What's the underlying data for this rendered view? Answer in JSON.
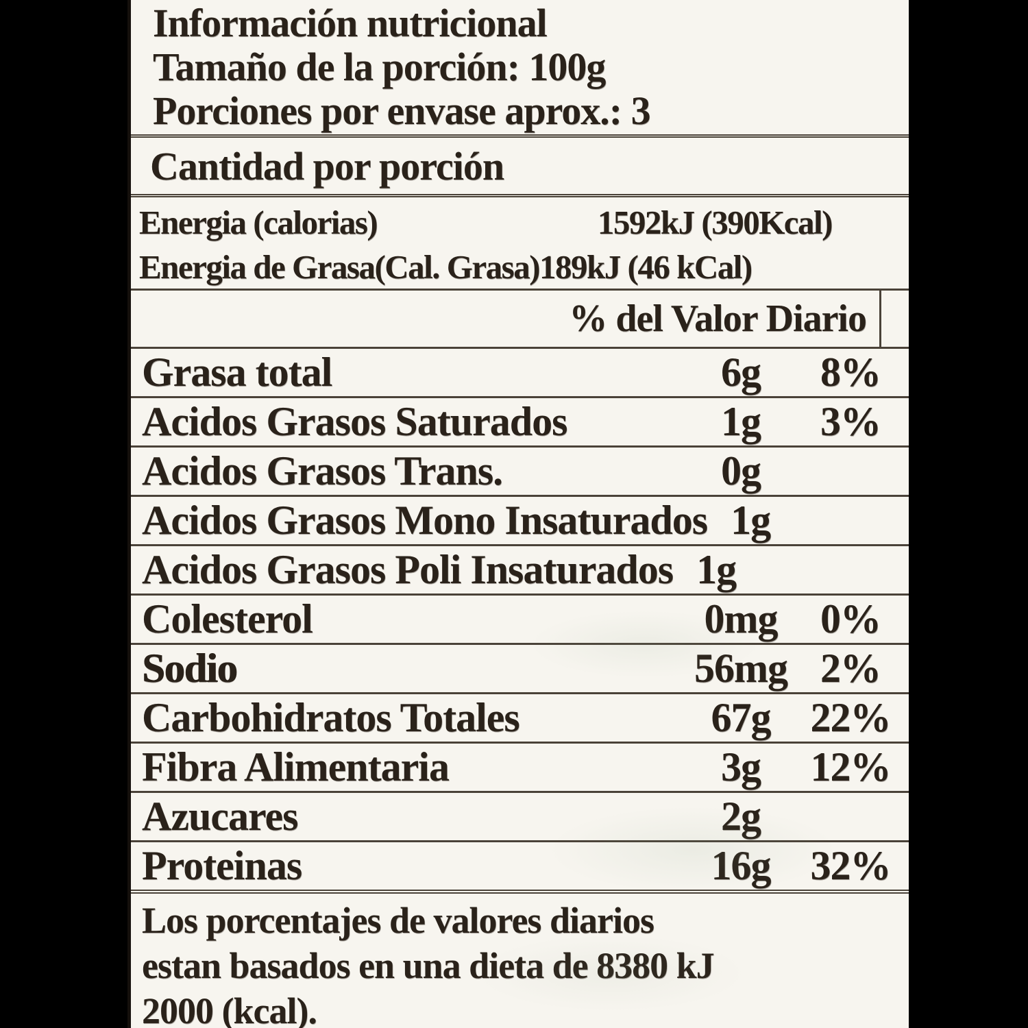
{
  "label": {
    "header": {
      "title": "Información nutricional",
      "serving_size": "Tamaño de la porción: 100g",
      "servings_per_container": "Porciones por envase aprox.: 3"
    },
    "amount_per_serving": "Cantidad por porción",
    "energy": [
      {
        "name": "Energia (calorias)",
        "value": "1592kJ (390Kcal)"
      },
      {
        "name": "Energia de Grasa(Cal. Grasa)",
        "value": "189kJ (46 kCal)"
      }
    ],
    "daily_value_header": "% del Valor Diario",
    "nutrients": [
      {
        "name": "Grasa total",
        "amount": "6g",
        "dv": "8%",
        "inline": false,
        "bold": false
      },
      {
        "name": "Acidos Grasos Saturados",
        "amount": "1g",
        "dv": "3%",
        "inline": false,
        "bold": false
      },
      {
        "name": "Acidos Grasos Trans.",
        "amount": "0g",
        "dv": "",
        "inline": false,
        "bold": false
      },
      {
        "name": "Acidos Grasos Mono Insaturados",
        "amount": "1g",
        "dv": "",
        "inline": true,
        "bold": false
      },
      {
        "name": "Acidos Grasos Poli Insaturados",
        "amount": "1g",
        "dv": "",
        "inline": true,
        "bold": false
      },
      {
        "name": "Colesterol",
        "amount": "0mg",
        "dv": "0%",
        "inline": false,
        "bold": false
      },
      {
        "name": "Sodio",
        "amount": "56mg",
        "dv": "2%",
        "inline": false,
        "bold": true
      },
      {
        "name": "Carbohidratos Totales",
        "amount": "67g",
        "dv": "22%",
        "inline": false,
        "bold": false
      },
      {
        "name": "Fibra Alimentaria",
        "amount": "3g",
        "dv": "12%",
        "inline": false,
        "bold": false
      },
      {
        "name": "Azucares",
        "amount": "2g",
        "dv": "",
        "inline": false,
        "bold": false
      },
      {
        "name": "Proteinas",
        "amount": "16g",
        "dv": "32%",
        "inline": false,
        "bold": false
      }
    ],
    "footnote_lines": [
      "Los porcentajes de valores diarios",
      "estan basados en una dieta de 8380 kJ",
      "2000 (kcal)."
    ],
    "colors": {
      "paper": "#f7f5ef",
      "ink": "#2a221a",
      "rule": "#4a4238",
      "edge": "#15100c",
      "background": "#000000"
    }
  }
}
